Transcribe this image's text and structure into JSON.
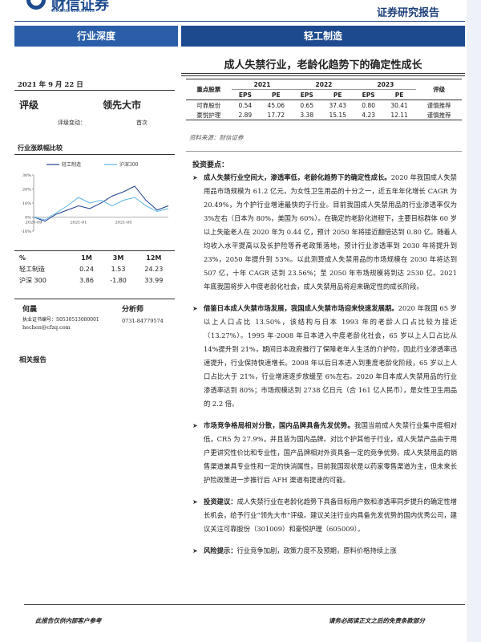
{
  "header": {
    "logo_cn": "财信证券",
    "logo_en": "CHASING SECURITIES",
    "report_type": "证券研究报告"
  },
  "banner": {
    "category": "行业深度",
    "industry": "轻工制造"
  },
  "title": "成人失禁行业，老龄化趋势下的确定性成长",
  "sidebar": {
    "date": "2021 年 9 月 22 日",
    "rating_label": "评级",
    "rating": "领先大市",
    "rating_change_label": "评级变动：",
    "rating_change": "首次",
    "chart_title": "行业涨跌幅比较"
  },
  "chart_data": {
    "type": "line",
    "categories": [
      "2020-09",
      null,
      null,
      null,
      "2021-01",
      null,
      null,
      null,
      "2021-05",
      null,
      null,
      null,
      null
    ],
    "series": [
      {
        "name": "轻工制造",
        "color": "#1f3f8f",
        "values": [
          0,
          -3,
          2,
          5,
          8,
          6,
          10,
          15,
          18,
          22,
          12,
          5,
          8
        ]
      },
      {
        "name": "沪深300",
        "color": "#5ab4e6",
        "values": [
          0,
          -2,
          3,
          8,
          14,
          10,
          12,
          8,
          12,
          14,
          8,
          4,
          6
        ]
      }
    ],
    "ylim": [
      -10,
      30
    ],
    "yticks": [
      {
        "value": -10,
        "label": "-10%"
      },
      {
        "value": 0,
        "label": "0%"
      },
      {
        "value": 10,
        "label": "10%"
      },
      {
        "value": 20,
        "label": "20%"
      },
      {
        "value": 30,
        "label": "30%"
      }
    ],
    "grid": false
  },
  "perf_table": {
    "header": [
      "%",
      "1M",
      "3M",
      "12M"
    ],
    "rows": [
      [
        "轻工制造",
        "0.24",
        "1.53",
        "24.23"
      ],
      [
        "沪深 300",
        "3.86",
        "-1.80",
        "33.99"
      ]
    ]
  },
  "analyst": {
    "name": "何晨",
    "role": "分析师",
    "cert": "执业证书编号：S0530513080001",
    "phone": "0731-84779574",
    "email": "hechen@cfzq.com"
  },
  "related_title": "相关报告",
  "stocks_table": {
    "stock_header": "重点股票",
    "years": [
      "2021",
      "2022",
      "2023"
    ],
    "sub_headers": [
      "EPS",
      "PE",
      "EPS",
      "PE",
      "EPS",
      "PE"
    ],
    "rating_header": "评级",
    "rows": [
      [
        "可靠股份",
        "0.54",
        "45.06",
        "0.65",
        "37.43",
        "0.80",
        "30.41",
        "谨慎推荐"
      ],
      [
        "豪悦护理",
        "2.89",
        "17.72",
        "3.38",
        "15.15",
        "4.23",
        "12.11",
        "谨慎推荐"
      ]
    ]
  },
  "source": "资料来源：财信证券",
  "points_title": "投资要点：",
  "points": [
    {
      "lead": "成人失禁行业空间大，渗透率低，老龄化趋势下的确定性成长。",
      "body": "2020 年我国成人失禁用品市场规模为 61.2 亿元，为女性卫生用品的十分之一，近五年年化增长 CAGR 为 20.49%，为个护行业增速最快的子行业。目前我国成人失禁用品的行业渗透率仅为 3%左右（日本为 80%，美国为 60%）。在确定的老龄化进程下，主要目标群体 60 岁以上失能老人在 2020 年为 0.44 亿，预计 2050 年将接近翻倍达到 0.80 亿。随着人均收入水平提高以及长护险等养老政策落地，预计行业渗透率到 2030 年将提升到 23%，2050 年提升到 53%。以此测算成人失禁用品的市场规模在 2030 年将达到 507 亿，十年 CAGR 达到 23.56%；至 2050 年市场规模将到达 2530 亿。2021 年底我国将步入中度老龄化社会，成人失禁用品将迎来确定性的成长阶段。"
    },
    {
      "lead": "借鉴日本成人失禁市场发展，我国成人失禁市场迎来快速发展期。",
      "body": "2020 年我国 65 岁以上人口占比 13.50%，该结构与日本 1993 年的老龄人口占比较为接近（13.27%）。1995 年-2008 年日本进入中度老龄化社会，65 岁以上人口占比从 14%提升到 21%，期间日本政府推行了保障老年人生活的介护险，因此行业渗透率迅速提升，行业保持快速增长。2008 年以后日本进入到重度老龄化阶段，65 岁以上人口占比大于 21%，行业增速逐步放缓至 6%左右。2020 年日本成人失禁用品的行业渗透率达到 80%；市场规模达到 2738 亿日元（合 161 亿人民币），是女性卫生用品的 2.2 倍。"
    },
    {
      "lead": "市场竞争格局相对分散，国内品牌具备先发优势。",
      "body": "我国当前成人失禁行业集中度相对低，CR5 为 27.9%，并且皆为国内品牌。对比个护其他子行业，成人失禁产品由于用户更讲究性价比和专业性，国产品牌相对外资具备一定的竞争优势。成人失禁用品的销售渠道兼具专业性和一定的快消属性，目前我国现状是以药家零售渠道为主，但未来长护险政策进一步推行后 AFH 渠道有提速的可能。"
    },
    {
      "lead": "投资建议：",
      "body": "成人失禁行业在老龄化趋势下具备目标用户数和渗透率同步提升的确定性增长机会，给予行业“领先大市”评级。建议关注行业内具备先发优势的国内优秀公司，建议关注可靠股份（301009）和豪悦护理（605009）。"
    },
    {
      "lead": "风险提示：",
      "body": "行业竞争加剧，政策力度不及预期，原料价格持续上涨"
    }
  ],
  "footer": {
    "left": "此报告仅供内部客户参考",
    "right": "请务必阅读正文之后的免责条款部分"
  }
}
